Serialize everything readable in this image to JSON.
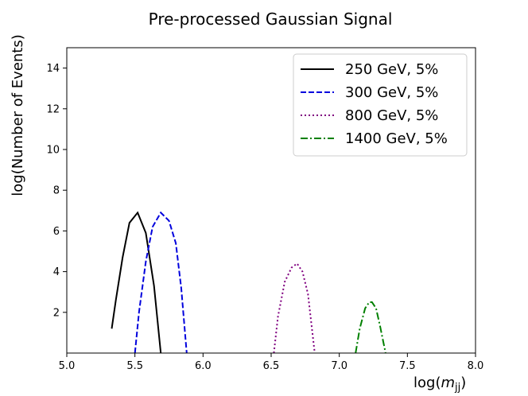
{
  "chart_data": {
    "type": "line",
    "title": "Pre-processed Gaussian Signal",
    "xlabel": "log(",
    "xlabel_math": "m",
    "xlabel_sub": "jj",
    "xlabel_close": ")",
    "ylabel": "log(Number of Events)",
    "xlim": [
      5.0,
      8.0
    ],
    "ylim": [
      0,
      15
    ],
    "xticks": [
      "5.0",
      "5.5",
      "6.0",
      "6.5",
      "7.0",
      "7.5",
      "8.0"
    ],
    "yticks": [
      "2",
      "4",
      "6",
      "8",
      "10",
      "12",
      "14"
    ],
    "grid": false,
    "legend_position": "top-right",
    "series": [
      {
        "name": "250 GeV, 5%",
        "color": "#000000",
        "style": "solid",
        "x": [
          5.33,
          5.36,
          5.41,
          5.46,
          5.52,
          5.58,
          5.64,
          5.69
        ],
        "y": [
          1.2,
          2.6,
          4.7,
          6.4,
          6.9,
          5.9,
          3.3,
          0.0
        ]
      },
      {
        "name": "300 GeV, 5%",
        "color": "#0000dd",
        "style": "dashed",
        "x": [
          5.5,
          5.53,
          5.58,
          5.63,
          5.69,
          5.75,
          5.8,
          5.84,
          5.88
        ],
        "y": [
          0.0,
          2.0,
          4.5,
          6.2,
          6.9,
          6.5,
          5.4,
          3.2,
          0.0
        ]
      },
      {
        "name": "800 GeV, 5%",
        "color": "#800080",
        "style": "dotted",
        "x": [
          6.52,
          6.55,
          6.6,
          6.65,
          6.69,
          6.73,
          6.77,
          6.82
        ],
        "y": [
          0.0,
          1.8,
          3.5,
          4.2,
          4.4,
          4.0,
          2.9,
          0.0
        ]
      },
      {
        "name": "1400 GeV, 5%",
        "color": "#008000",
        "style": "dashdot",
        "x": [
          7.12,
          7.15,
          7.19,
          7.22,
          7.24,
          7.27,
          7.3,
          7.34
        ],
        "y": [
          0.0,
          1.2,
          2.2,
          2.5,
          2.5,
          2.2,
          1.3,
          0.0
        ]
      }
    ]
  }
}
